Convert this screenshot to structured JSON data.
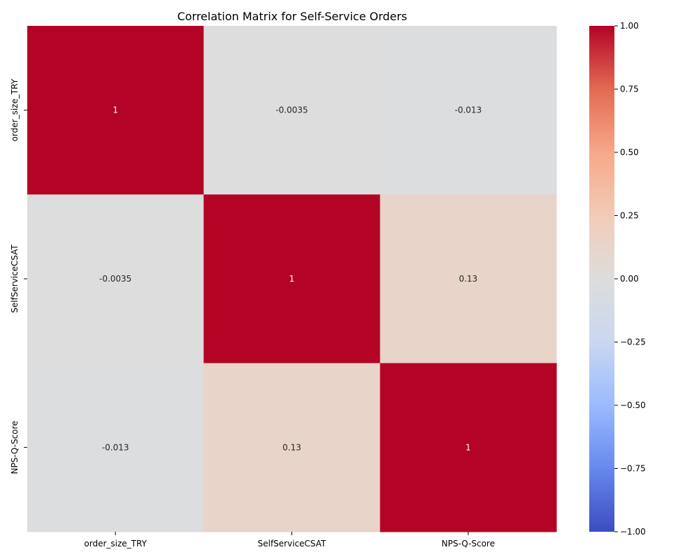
{
  "chart_data": {
    "type": "heatmap",
    "title": "Correlation Matrix for Self-Service Orders",
    "xlabel": "",
    "ylabel": "",
    "row_labels": [
      "order_size_TRY",
      "SelfServiceCSAT",
      "NPS-Q-Score"
    ],
    "col_labels": [
      "order_size_TRY",
      "SelfServiceCSAT",
      "NPS-Q-Score"
    ],
    "values": [
      [
        1,
        -0.0035,
        -0.013
      ],
      [
        -0.0035,
        1,
        0.13
      ],
      [
        -0.013,
        0.13,
        1
      ]
    ],
    "annotations": [
      [
        "1",
        "-0.0035",
        "-0.013"
      ],
      [
        "-0.0035",
        "1",
        "0.13"
      ],
      [
        "-0.013",
        "0.13",
        "1"
      ]
    ],
    "colormap": "coolwarm",
    "vmin": -1,
    "vmax": 1,
    "colorbar_ticks": [
      "1.00",
      "0.75",
      "0.50",
      "0.25",
      "0.00",
      "−0.25",
      "−0.50",
      "−0.75",
      "−1.00"
    ],
    "colorbar_tick_values": [
      1,
      0.75,
      0.5,
      0.25,
      0,
      -0.25,
      -0.5,
      -0.75,
      -1
    ],
    "colorbar_stops": [
      "#3b4cc0",
      "#6788ee",
      "#9abbff",
      "#c9d7f0",
      "#dddddd",
      "#f2cbb7",
      "#f7a889",
      "#e36a53",
      "#b40426"
    ]
  }
}
